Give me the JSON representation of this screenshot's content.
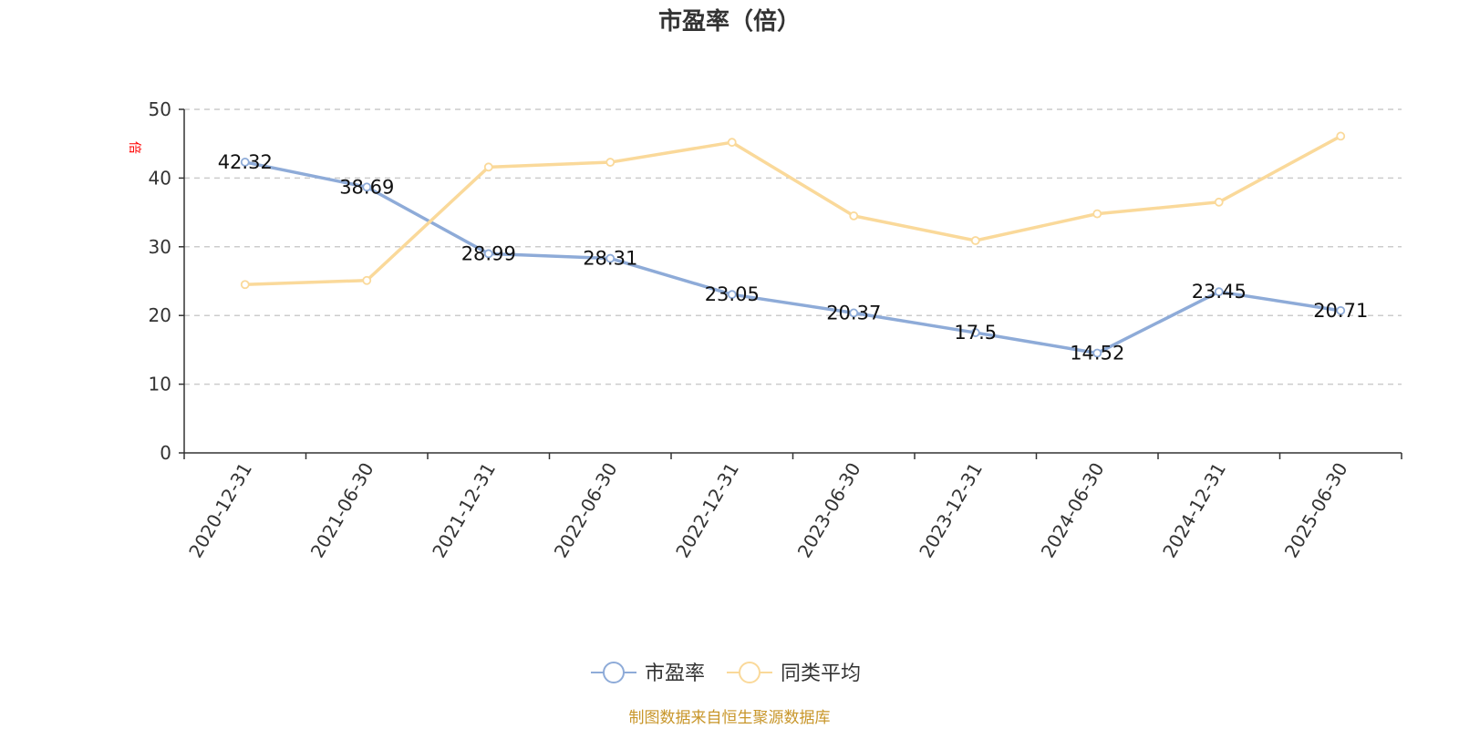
{
  "chart_data": {
    "type": "line",
    "title": "市盈率（倍）",
    "ylabel": "倍",
    "xlabel": "",
    "categories": [
      "2020-12-31",
      "2021-06-30",
      "2021-12-31",
      "2022-06-30",
      "2022-12-31",
      "2023-06-30",
      "2023-12-31",
      "2024-06-30",
      "2024-12-31",
      "2025-06-30"
    ],
    "ylim": [
      0,
      50
    ],
    "yticks": [
      0,
      10,
      20,
      30,
      40,
      50
    ],
    "grid": true,
    "legend_position": "bottom",
    "series": [
      {
        "name": "市盈率",
        "color": "#8eabd8",
        "values": [
          42.32,
          38.69,
          28.99,
          28.31,
          23.05,
          20.37,
          17.5,
          14.52,
          23.45,
          20.71
        ],
        "labels": [
          "42.32",
          "38.69",
          "28.99",
          "28.31",
          "23.05",
          "20.37",
          "17.5",
          "14.52",
          "23.45",
          "20.71"
        ],
        "show_labels": true
      },
      {
        "name": "同类平均",
        "color": "#fad99a",
        "values": [
          24.5,
          25.1,
          41.6,
          42.3,
          45.2,
          34.5,
          30.9,
          34.8,
          36.5,
          46.1
        ],
        "show_labels": false
      }
    ]
  },
  "footer": {
    "source": "制图数据来自恒生聚源数据库"
  }
}
